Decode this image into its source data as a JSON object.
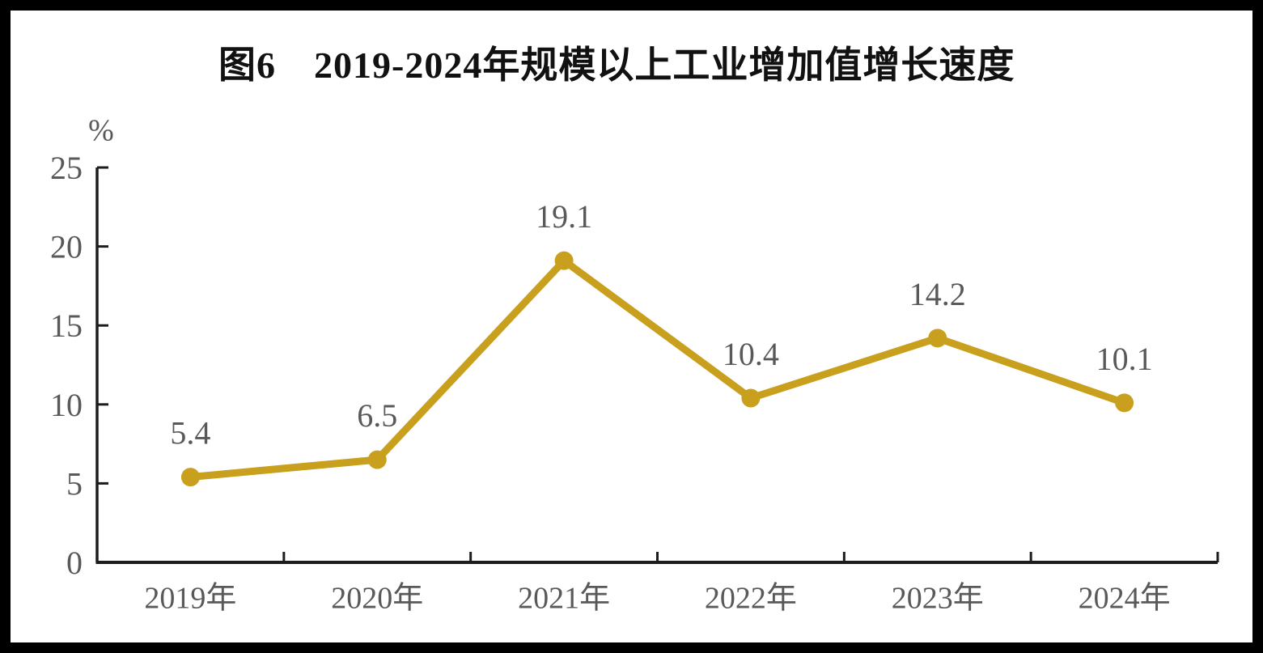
{
  "figure": {
    "title": "图6　2019-2024年规模以上工业增加值增长速度",
    "y_unit_label": "%"
  },
  "colors": {
    "line": "#C8A01E",
    "marker": "#C8A01E",
    "label_text": "#595959",
    "axis": "#1c1c1c",
    "title_text": "#111111",
    "frame": "#000000",
    "background": "#ffffff"
  },
  "chart_data": {
    "type": "line",
    "title": "图6　2019-2024年规模以上工业增加值增长速度",
    "categories": [
      "2019年",
      "2020年",
      "2021年",
      "2022年",
      "2023年",
      "2024年"
    ],
    "values": [
      5.4,
      6.5,
      19.1,
      10.4,
      14.2,
      10.1
    ],
    "data_labels": [
      "5.4",
      "6.5",
      "19.1",
      "10.4",
      "14.2",
      "10.1"
    ],
    "xlabel": "",
    "ylabel": "%",
    "ylim": [
      0,
      25
    ],
    "y_ticks": [
      0,
      5,
      10,
      15,
      20,
      25
    ],
    "y_tick_labels": [
      "0",
      "5",
      "10",
      "15",
      "20",
      "25"
    ],
    "grid": false,
    "legend_position": "none",
    "marker_style": "circle",
    "axis_sides": [
      "left",
      "bottom"
    ]
  }
}
